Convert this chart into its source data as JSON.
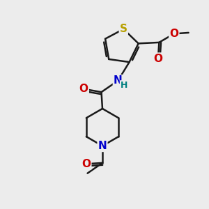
{
  "background_color": "#ececec",
  "bond_color": "#1a1a1a",
  "S_color": "#b8a000",
  "N_color": "#0000cc",
  "O_color": "#cc0000",
  "H_color": "#008080",
  "line_width": 1.8,
  "font_size_atoms": 11,
  "font_size_small": 9,
  "xlim": [
    0,
    10
  ],
  "ylim": [
    0,
    10
  ]
}
